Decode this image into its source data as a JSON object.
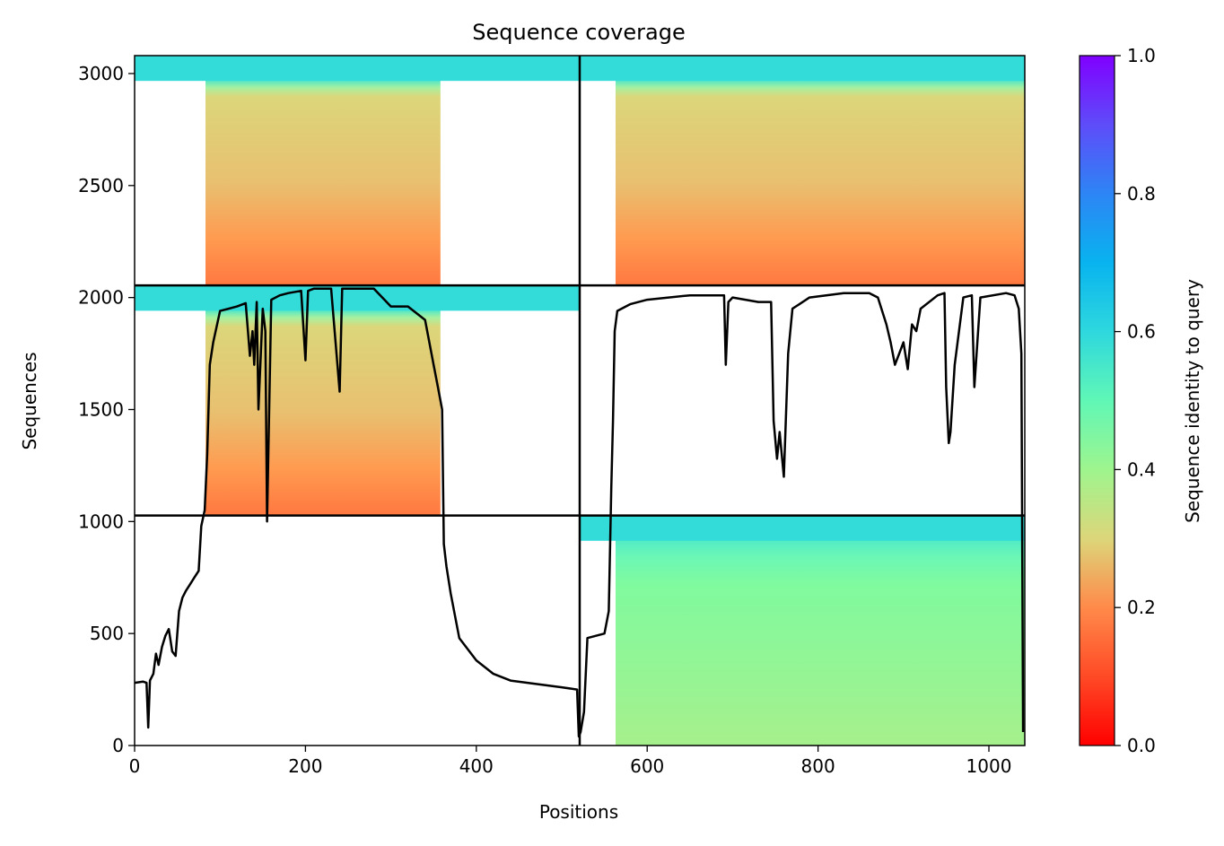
{
  "chart_data": {
    "type": "heatmap",
    "title": "Sequence coverage",
    "xlabel": "Positions",
    "ylabel": "Sequences",
    "xlim": [
      0,
      1042
    ],
    "ylim": [
      0,
      3080
    ],
    "x_ticks": [
      0,
      200,
      400,
      600,
      800,
      1000
    ],
    "y_ticks": [
      0,
      500,
      1000,
      1500,
      2000,
      2500,
      3000
    ],
    "grid": false,
    "colorbar": {
      "label": "Sequence identity to query",
      "range": [
        0,
        1
      ],
      "ticks": [
        "0.0",
        "0.2",
        "0.4",
        "0.6",
        "0.8",
        "1.0"
      ],
      "colormap": "rainbow_r"
    },
    "chain_boundaries_x": [
      521
    ],
    "chain_boundaries_y": [
      1027,
      2054
    ],
    "blocks": [
      {
        "name": "top-left",
        "x": [
          0,
          521
        ],
        "y": [
          2054,
          3080
        ],
        "covered_x": [
          83,
          358
        ],
        "identity_top": 0.65,
        "identity_bottom": 0.22
      },
      {
        "name": "top-right",
        "x": [
          521,
          1042
        ],
        "y": [
          2054,
          3080
        ],
        "covered_x": [
          563,
          1042
        ],
        "identity_top": 0.65,
        "identity_bottom": 0.22
      },
      {
        "name": "middle-left",
        "x": [
          0,
          521
        ],
        "y": [
          1027,
          2054
        ],
        "covered_x": [
          83,
          358
        ],
        "identity_top": 0.65,
        "identity_bottom": 0.22
      },
      {
        "name": "bottom-right",
        "x": [
          521,
          1042
        ],
        "y": [
          0,
          1027
        ],
        "covered_x": [
          563,
          1042
        ],
        "identity_top": 0.65,
        "identity_bottom": 0.42
      }
    ],
    "coverage_line": {
      "x": [
        0,
        10,
        14,
        16,
        18,
        22,
        25,
        28,
        32,
        36,
        40,
        44,
        48,
        52,
        56,
        60,
        65,
        70,
        75,
        78,
        82,
        85,
        88,
        92,
        100,
        120,
        130,
        135,
        138,
        140,
        143,
        145,
        150,
        153,
        155,
        160,
        170,
        180,
        195,
        200,
        203,
        210,
        230,
        240,
        243,
        250,
        280,
        300,
        320,
        340,
        350,
        355,
        360,
        362,
        365,
        370,
        380,
        400,
        420,
        440,
        460,
        480,
        500,
        518,
        520,
        522,
        526,
        530,
        540,
        550,
        555,
        558,
        560,
        562,
        565,
        570,
        575,
        580,
        600,
        650,
        690,
        692,
        695,
        700,
        730,
        745,
        748,
        752,
        755,
        760,
        765,
        770,
        790,
        830,
        860,
        870,
        880,
        885,
        890,
        895,
        900,
        905,
        910,
        915,
        920,
        940,
        948,
        950,
        953,
        955,
        960,
        970,
        980,
        983,
        990,
        1020,
        1030,
        1035,
        1038,
        1040
      ],
      "y": [
        280,
        285,
        280,
        80,
        290,
        320,
        410,
        360,
        440,
        490,
        520,
        420,
        400,
        600,
        660,
        690,
        720,
        750,
        780,
        980,
        1050,
        1300,
        1700,
        1800,
        1940,
        1960,
        1975,
        1740,
        1850,
        1700,
        1980,
        1500,
        1950,
        1850,
        1000,
        1990,
        2010,
        2020,
        2030,
        1720,
        2030,
        2040,
        2040,
        1580,
        2040,
        2040,
        2040,
        1960,
        1960,
        1900,
        1700,
        1600,
        1500,
        900,
        800,
        680,
        480,
        380,
        320,
        290,
        280,
        270,
        260,
        250,
        40,
        60,
        150,
        480,
        490,
        500,
        600,
        1150,
        1450,
        1850,
        1940,
        1950,
        1960,
        1970,
        1990,
        2010,
        2010,
        1700,
        1980,
        2000,
        1980,
        1980,
        1450,
        1280,
        1400,
        1200,
        1750,
        1950,
        2000,
        2020,
        2020,
        2000,
        1880,
        1800,
        1700,
        1750,
        1800,
        1680,
        1880,
        1850,
        1950,
        2010,
        2020,
        1600,
        1350,
        1400,
        1700,
        2000,
        2010,
        1600,
        2000,
        2020,
        2010,
        1950,
        1750,
        60
      ]
    }
  }
}
